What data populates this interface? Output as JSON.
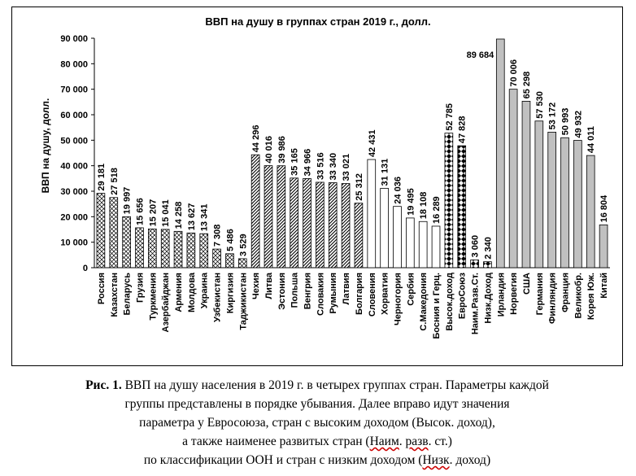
{
  "chart_data": {
    "type": "bar",
    "title": "ВВП на душу в группах стран 2019 г., долл.",
    "ylabel": "ВВП на душу, долл.",
    "xlabel": "",
    "ylim": [
      0,
      90000
    ],
    "yticks": [
      0,
      10000,
      20000,
      30000,
      40000,
      50000,
      60000,
      70000,
      80000,
      90000
    ],
    "ytick_labels": [
      "0",
      "10 000",
      "20 000",
      "30 000",
      "40 000",
      "50 000",
      "60 000",
      "70 000",
      "80 000",
      "90 000"
    ],
    "grid": false,
    "legend": "none",
    "bars": [
      {
        "category": "Россия",
        "value": 29181,
        "label": "29 181",
        "pattern": "crosshatch"
      },
      {
        "category": "Казахстан",
        "value": 27518,
        "label": "27 518",
        "pattern": "crosshatch"
      },
      {
        "category": "Беларусь",
        "value": 19997,
        "label": "19 997",
        "pattern": "crosshatch"
      },
      {
        "category": "Грузия",
        "value": 15656,
        "label": "15 656",
        "pattern": "crosshatch"
      },
      {
        "category": "Туркмения",
        "value": 15207,
        "label": "15 207",
        "pattern": "crosshatch"
      },
      {
        "category": "Азербайджан",
        "value": 15041,
        "label": "15 041",
        "pattern": "crosshatch"
      },
      {
        "category": "Армения",
        "value": 14258,
        "label": "14 258",
        "pattern": "crosshatch"
      },
      {
        "category": "Молдова",
        "value": 13627,
        "label": "13 627",
        "pattern": "crosshatch"
      },
      {
        "category": "Украина",
        "value": 13341,
        "label": "13 341",
        "pattern": "crosshatch"
      },
      {
        "category": "Узбекистан",
        "value": 7308,
        "label": "7 308",
        "pattern": "crosshatch"
      },
      {
        "category": "Киргизия",
        "value": 5486,
        "label": "5 486",
        "pattern": "crosshatch"
      },
      {
        "category": "Таджикистан",
        "value": 3529,
        "label": "3 529",
        "pattern": "crosshatch"
      },
      {
        "category": "Чехия",
        "value": 44296,
        "label": "44 296",
        "pattern": "diagonal"
      },
      {
        "category": "Литва",
        "value": 40016,
        "label": "40 016",
        "pattern": "diagonal"
      },
      {
        "category": "Эстония",
        "value": 39986,
        "label": "39 986",
        "pattern": "diagonal"
      },
      {
        "category": "Польша",
        "value": 35165,
        "label": "35 165",
        "pattern": "diagonal"
      },
      {
        "category": "Венгрия",
        "value": 34966,
        "label": "34 966",
        "pattern": "diagonal"
      },
      {
        "category": "Словакия",
        "value": 33516,
        "label": "33 516",
        "pattern": "diagonal"
      },
      {
        "category": "Румыния",
        "value": 33340,
        "label": "33 340",
        "pattern": "diagonal"
      },
      {
        "category": "Латвия",
        "value": 33021,
        "label": "33 021",
        "pattern": "diagonal"
      },
      {
        "category": "Болгария",
        "value": 25312,
        "label": "25 312",
        "pattern": "diagonal"
      },
      {
        "category": "Словения",
        "value": 42431,
        "label": "42 431",
        "pattern": "white"
      },
      {
        "category": "Хорватия",
        "value": 31131,
        "label": "31 131",
        "pattern": "white"
      },
      {
        "category": "Черногория",
        "value": 24036,
        "label": "24 036",
        "pattern": "white"
      },
      {
        "category": "Сербия",
        "value": 19495,
        "label": "19 495",
        "pattern": "white"
      },
      {
        "category": "С.Македония",
        "value": 18108,
        "label": "18 108",
        "pattern": "white"
      },
      {
        "category": "Босния и Герц.",
        "value": 16289,
        "label": "16 289",
        "pattern": "white"
      },
      {
        "category": "Высок.доход",
        "value": 52785,
        "label": "52 785",
        "pattern": "diamond"
      },
      {
        "category": "ЕвроСоюз",
        "value": 47828,
        "label": "47 828",
        "pattern": "diamond"
      },
      {
        "category": "Наим.Разв.Ст.",
        "value": 3060,
        "label": "3 060",
        "pattern": "diamond"
      },
      {
        "category": "Низк.Доход",
        "value": 2340,
        "label": "2 340",
        "pattern": "diamond"
      },
      {
        "category": "Ирландия",
        "value": 89684,
        "label": "89 684",
        "pattern": "gray"
      },
      {
        "category": "Норвегия",
        "value": 70006,
        "label": "70 006",
        "pattern": "gray"
      },
      {
        "category": "США",
        "value": 65298,
        "label": "65 298",
        "pattern": "gray"
      },
      {
        "category": "Германия",
        "value": 57530,
        "label": "57 530",
        "pattern": "gray"
      },
      {
        "category": "Финляндия",
        "value": 53172,
        "label": "53 172",
        "pattern": "gray"
      },
      {
        "category": "Франция",
        "value": 50993,
        "label": "50 993",
        "pattern": "gray"
      },
      {
        "category": "Великобр.",
        "value": 49932,
        "label": "49 932",
        "pattern": "gray"
      },
      {
        "category": "Корея Юж.",
        "value": 44011,
        "label": "44 011",
        "pattern": "gray"
      },
      {
        "category": "Китай",
        "value": 16804,
        "label": "16 804",
        "pattern": "gray"
      }
    ],
    "colors": {
      "gray_fill": "#c0c0c0",
      "axis": "#000000"
    }
  },
  "caption": {
    "bold": "Рис. 1.",
    "line1": " ВВП на душу населения в 2019 г. в четырех группах стран. Параметры каждой",
    "line2": "группы представлены в порядке убывания. Далее вправо идут значения",
    "line3": "параметра у Евросоюза, стран с высоким доходом (Высок. доход),",
    "line4a": "а также наименее развитых стран (",
    "line4b": "Наим",
    "line4c": ". ",
    "line4d": "разв",
    "line4e": ". ст.)",
    "line5a": "по классификации ООН и стран с низким доходом (",
    "line5b": "Низк",
    "line5c": ". доход)"
  }
}
